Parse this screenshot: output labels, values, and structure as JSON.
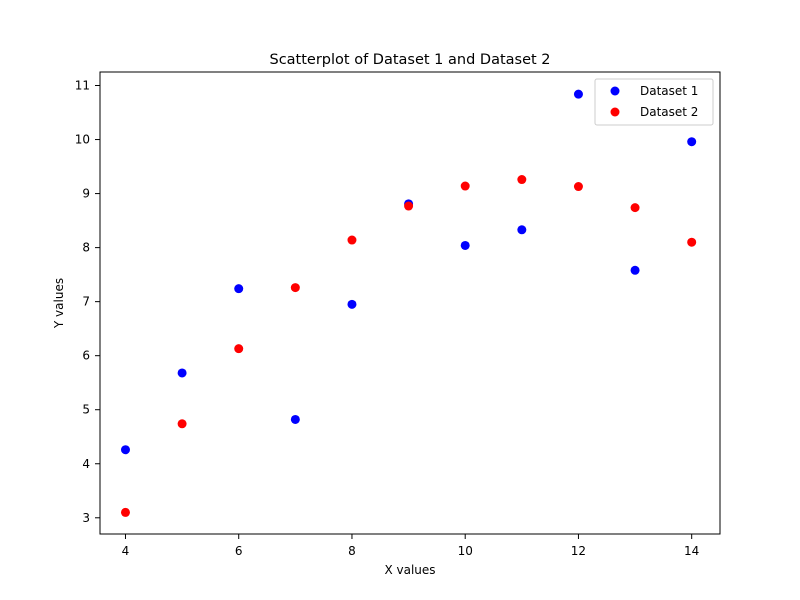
{
  "chart_data": {
    "type": "scatter",
    "title": "Scatterplot of Dataset 1 and Dataset 2",
    "xlabel": "X values",
    "ylabel": "Y values",
    "xlim": [
      3.55,
      14.5
    ],
    "ylim": [
      2.7,
      11.25
    ],
    "xticks": [
      4,
      6,
      8,
      10,
      12,
      14
    ],
    "yticks": [
      3,
      4,
      5,
      6,
      7,
      8,
      9,
      10,
      11
    ],
    "grid": false,
    "legend_position": "top-right",
    "series": [
      {
        "name": "Dataset 1",
        "color": "#0000ff",
        "x": [
          10,
          8,
          13,
          9,
          11,
          14,
          6,
          4,
          12,
          7,
          5
        ],
        "y": [
          8.04,
          6.95,
          7.58,
          8.81,
          8.33,
          9.96,
          7.24,
          4.26,
          10.84,
          4.82,
          5.68
        ]
      },
      {
        "name": "Dataset 2",
        "color": "#ff0000",
        "x": [
          10,
          8,
          13,
          9,
          11,
          14,
          6,
          4,
          12,
          7,
          5
        ],
        "y": [
          9.14,
          8.14,
          8.74,
          8.77,
          9.26,
          8.1,
          6.13,
          3.1,
          9.13,
          7.26,
          4.74
        ]
      }
    ]
  }
}
